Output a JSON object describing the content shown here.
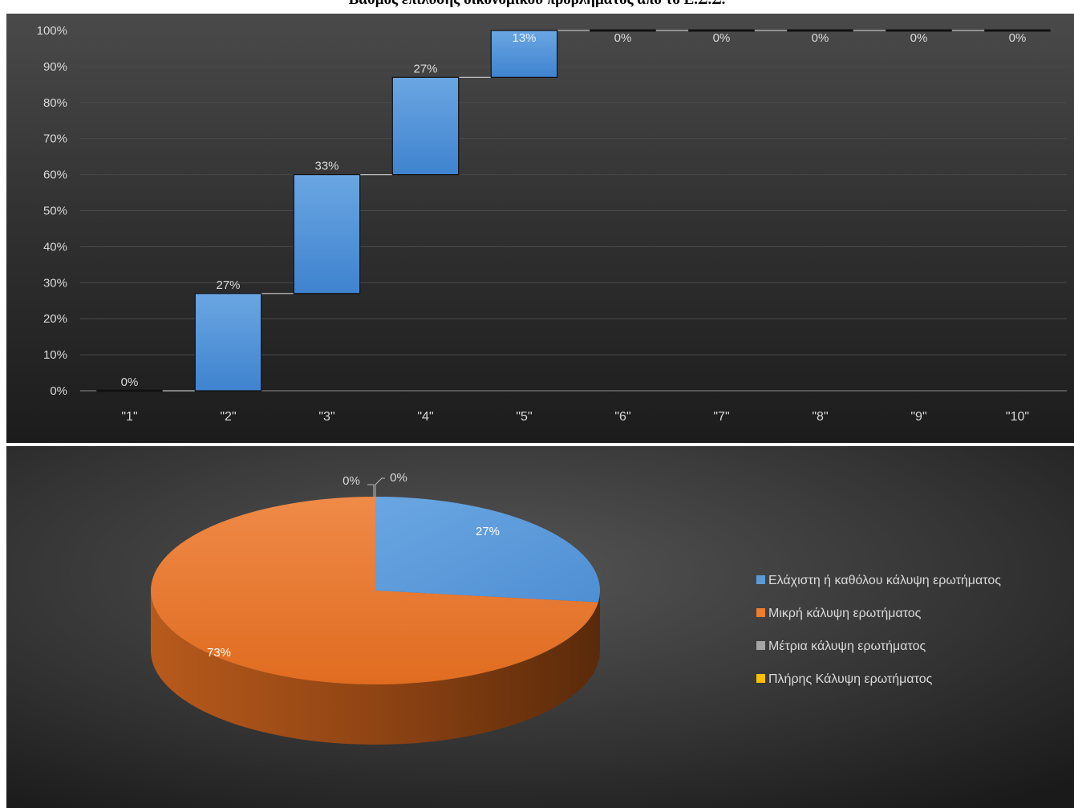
{
  "title": "Βαθμός επίλυσης οικονομικού προβλήματος από το Ε.Σ.Σ.",
  "colors": {
    "bar": "#4a90d9",
    "pie_blue": "#5b9bd5",
    "pie_orange": "#ed7d31",
    "pie_gray": "#a5a5a5",
    "pie_yellow": "#ffc000",
    "text": "#d9d9d9"
  },
  "chart_data": [
    {
      "type": "bar",
      "subtype": "waterfall",
      "categories": [
        "\"1\"",
        "\"2\"",
        "\"3\"",
        "\"4\"",
        "\"5\"",
        "\"6\"",
        "\"7\"",
        "\"8\"",
        "\"9\"",
        "\"10\""
      ],
      "values": [
        0,
        27,
        33,
        27,
        13,
        0,
        0,
        0,
        0,
        0
      ],
      "data_labels": [
        "0%",
        "27%",
        "33%",
        "27%",
        "13%",
        "0%",
        "0%",
        "0%",
        "0%",
        "0%"
      ],
      "ylim": [
        0,
        100
      ],
      "yticks": [
        "0%",
        "10%",
        "20%",
        "30%",
        "40%",
        "50%",
        "60%",
        "70%",
        "80%",
        "90%",
        "100%"
      ],
      "grid": true
    },
    {
      "type": "pie",
      "labels": [
        "Ελάχιστη ή καθόλου κάλυψη ερωτήματος",
        "Μικρή κάλυψη ερωτήματος",
        "Μέτρια κάλυψη ερωτήματος",
        "Πλήρης Κάλυψη ερωτήματος"
      ],
      "values": [
        27,
        73,
        0,
        0
      ],
      "data_labels": [
        "27%",
        "73%",
        "0%",
        "0%"
      ],
      "legend": "right"
    }
  ]
}
